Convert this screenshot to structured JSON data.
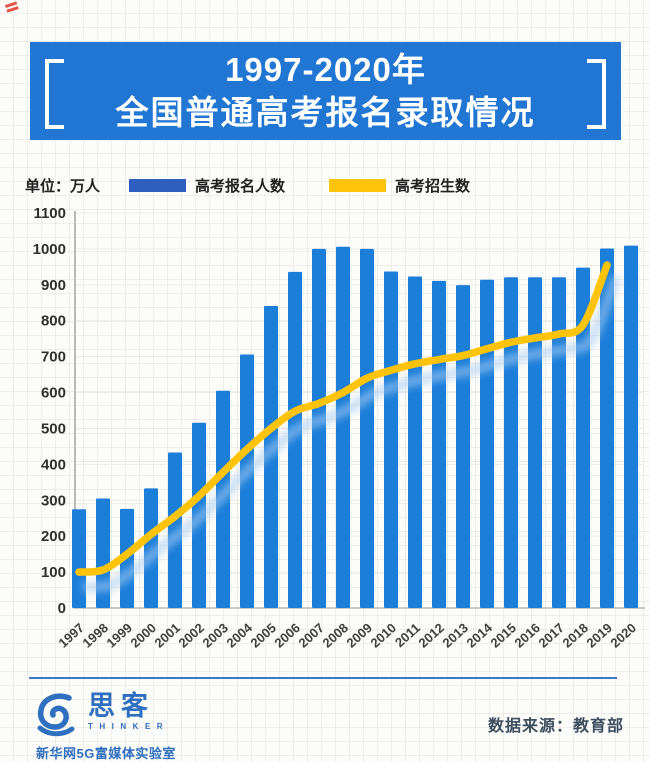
{
  "banner": {
    "title_line1": "1997-2020年",
    "title_line2": "全国普通高考报名录取情况"
  },
  "legend": {
    "unit_label": "单位：万人",
    "registration_label": "高考报名人数",
    "enrollment_label": "高考招生数"
  },
  "colors": {
    "banner": "#2176d3",
    "bar": "#1b7ed9",
    "legend_bar_swatch": "#2e5fc0",
    "line": "#ffc40a",
    "line_shadow": "#a7ccf1",
    "logo_blue": "#2e6fc0"
  },
  "chart_data": {
    "type": "bar",
    "title": "1997-2020年全国普通高考报名录取情况",
    "unit": "万人",
    "categories": [
      "1997",
      "1998",
      "1999",
      "2000",
      "2001",
      "2002",
      "2003",
      "2004",
      "2005",
      "2006",
      "2007",
      "2008",
      "2009",
      "2010",
      "2011",
      "2012",
      "2013",
      "2014",
      "2015",
      "2016",
      "2017",
      "2018",
      "2019",
      "2020"
    ],
    "series": [
      {
        "name": "高考报名人数",
        "type": "bar",
        "values": [
          275,
          305,
          276,
          333,
          433,
          516,
          605,
          706,
          841,
          936,
          1000,
          1006,
          1000,
          937,
          923,
          911,
          899,
          914,
          921,
          921,
          921,
          948,
          1001,
          1009
        ]
      },
      {
        "name": "高考招生数",
        "type": "line",
        "values": [
          100,
          106,
          150,
          205,
          255,
          312,
          378,
          442,
          500,
          548,
          570,
          600,
          640,
          662,
          680,
          692,
          703,
          722,
          740,
          752,
          763,
          788,
          955,
          null
        ]
      }
    ],
    "ylim": [
      0,
      1100
    ],
    "yticks": [
      0,
      100,
      200,
      300,
      400,
      500,
      600,
      700,
      800,
      900,
      1000,
      1100
    ],
    "grid": true,
    "legend_position": "top",
    "source": "教育部"
  },
  "footer": {
    "logo_cn": "思客",
    "logo_en": "THINKER",
    "lab_name": "新华网5G富媒体实验室",
    "source_label": "数据来源：教育部"
  }
}
